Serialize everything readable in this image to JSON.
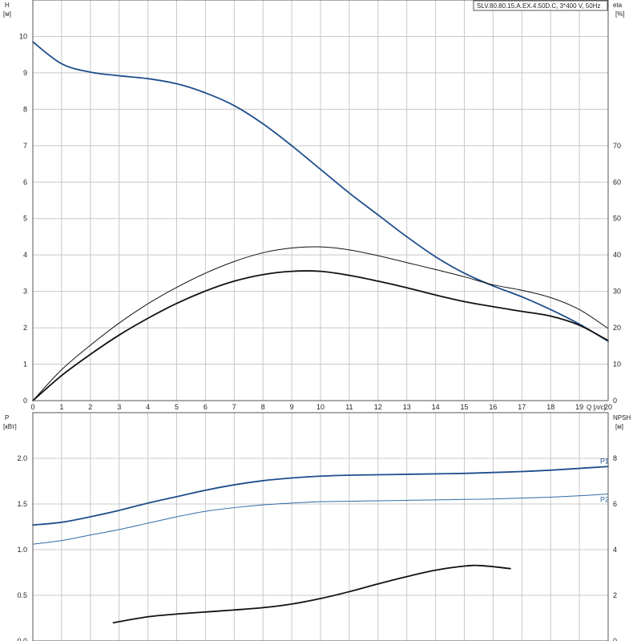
{
  "title": "SLV.80.80.15.A.EX.4.50D.C, 3*400 V, 50Hz",
  "colors": {
    "blue": "#1f4e8c",
    "blue_light": "#2f6aa6",
    "black": "#111111"
  },
  "chart_data": [
    {
      "type": "line",
      "panel": "top",
      "xlabel": "Q [л/с]",
      "ylabel": "H",
      "ylabel_unit": "[м]",
      "y2label": "eta",
      "y2label_unit": "[%]",
      "xlim": [
        0,
        20
      ],
      "ylim": [
        0,
        11
      ],
      "y2lim": [
        0,
        110
      ],
      "grid": true,
      "x_ticks": [
        0,
        1,
        2,
        3,
        4,
        5,
        6,
        7,
        8,
        9,
        10,
        11,
        12,
        13,
        14,
        15,
        16,
        17,
        18,
        19,
        20
      ],
      "y_ticks": [
        0,
        1,
        2,
        3,
        4,
        5,
        6,
        7,
        8,
        9,
        10
      ],
      "y2_ticks": [
        0,
        10,
        20,
        30,
        40,
        50,
        60,
        70
      ],
      "series": [
        {
          "role": "H",
          "axis": "left",
          "color": "#1f4e8c",
          "width": 1.8,
          "x": [
            0,
            1,
            2,
            3,
            4,
            5,
            6,
            7,
            8,
            9,
            10,
            11,
            12,
            13,
            14,
            15,
            16,
            17,
            18,
            19,
            20
          ],
          "y": [
            9.85,
            9.25,
            9.02,
            8.92,
            8.84,
            8.7,
            8.45,
            8.1,
            7.6,
            7.0,
            6.35,
            5.7,
            5.1,
            4.5,
            3.95,
            3.5,
            3.15,
            2.85,
            2.5,
            2.1,
            1.63
          ]
        },
        {
          "role": "eta_thin",
          "axis": "right",
          "color": "#111111",
          "width": 1.0,
          "x": [
            0,
            1,
            2,
            3,
            4,
            5,
            6,
            7,
            8,
            9,
            10,
            11,
            12,
            13,
            14,
            15,
            16,
            17,
            18,
            19,
            20
          ],
          "y": [
            0,
            8.5,
            15.2,
            21.3,
            26.6,
            31.1,
            35.0,
            38.2,
            40.6,
            41.9,
            42.2,
            41.4,
            39.8,
            37.9,
            36.0,
            34.0,
            31.8,
            30.3,
            28.3,
            25.0,
            19.8
          ]
        },
        {
          "role": "eta_thick",
          "axis": "right",
          "color": "#111111",
          "width": 1.8,
          "x": [
            0,
            1,
            2,
            3,
            4,
            5,
            6,
            7,
            8,
            9,
            10,
            11,
            12,
            13,
            14,
            15,
            16,
            17,
            18,
            19,
            20
          ],
          "y": [
            0,
            6.9,
            12.7,
            18.0,
            22.6,
            26.7,
            30.1,
            32.8,
            34.6,
            35.5,
            35.5,
            34.4,
            32.8,
            31.0,
            29.0,
            27.2,
            25.8,
            24.5,
            23.2,
            20.7,
            16.5
          ]
        }
      ]
    },
    {
      "type": "line",
      "panel": "bottom",
      "ylabel": "P",
      "ylabel_unit": "[кВт]",
      "y2label": "NPSH",
      "y2label_unit": "[м]",
      "xlim": [
        0,
        20
      ],
      "ylim": [
        0,
        2.5
      ],
      "y2lim": [
        0,
        10
      ],
      "grid": true,
      "y_ticks": [
        "0.0",
        "0.5",
        "1.0",
        "1.5",
        "2.0"
      ],
      "y2_ticks": [
        0,
        2,
        4,
        6,
        8
      ],
      "series": [
        {
          "name": "P1",
          "axis": "left",
          "color": "#1f4e8c",
          "width": 1.8,
          "x": [
            0,
            1,
            2,
            3,
            4,
            5,
            6,
            7,
            8,
            9,
            10,
            11,
            12,
            13,
            14,
            15,
            16,
            17,
            18,
            19,
            20
          ],
          "y": [
            1.27,
            1.3,
            1.36,
            1.43,
            1.51,
            1.58,
            1.65,
            1.71,
            1.755,
            1.785,
            1.805,
            1.815,
            1.82,
            1.825,
            1.83,
            1.835,
            1.845,
            1.855,
            1.87,
            1.89,
            1.91
          ]
        },
        {
          "name": "P2",
          "axis": "left",
          "color": "#2f6aa6",
          "width": 1.0,
          "x": [
            0,
            1,
            2,
            3,
            4,
            5,
            6,
            7,
            8,
            9,
            10,
            11,
            12,
            13,
            14,
            15,
            16,
            17,
            18,
            19,
            20
          ],
          "y": [
            1.06,
            1.1,
            1.16,
            1.22,
            1.29,
            1.36,
            1.42,
            1.46,
            1.49,
            1.51,
            1.525,
            1.53,
            1.535,
            1.54,
            1.545,
            1.55,
            1.555,
            1.565,
            1.575,
            1.59,
            1.61
          ]
        },
        {
          "role": "NPSH",
          "axis": "right",
          "color": "#111111",
          "width": 1.8,
          "x": [
            2.8,
            4,
            5,
            6,
            7,
            8,
            9,
            10,
            11,
            12,
            13,
            14,
            15,
            15.6,
            16.6
          ],
          "y": [
            0.8,
            1.06,
            1.18,
            1.27,
            1.36,
            1.46,
            1.62,
            1.86,
            2.16,
            2.5,
            2.82,
            3.1,
            3.28,
            3.3,
            3.17
          ]
        }
      ]
    }
  ]
}
